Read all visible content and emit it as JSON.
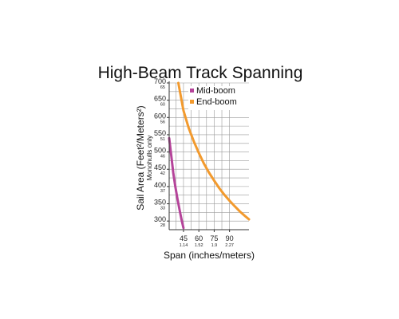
{
  "chart_data": {
    "type": "line",
    "title": "High-Beam Track Spanning",
    "ylabel": "Sail Area (Feet²/Meters²)",
    "ylabel_note": "Monohulls only",
    "xlabel": "Span (inches/meters)",
    "ylim": [
      275,
      700
    ],
    "xlim": [
      31,
      109
    ],
    "x_ticks": [
      {
        "value": 45,
        "label": "45",
        "sublabel": "1.14"
      },
      {
        "value": 60,
        "label": "60",
        "sublabel": "1.52"
      },
      {
        "value": 75,
        "label": "75",
        "sublabel": "1.9"
      },
      {
        "value": 90,
        "label": "90",
        "sublabel": "2.27"
      }
    ],
    "y_ticks": [
      {
        "value": 700,
        "label": "700",
        "sublabel": "65"
      },
      {
        "value": 650,
        "label": "650",
        "sublabel": "60"
      },
      {
        "value": 600,
        "label": "600",
        "sublabel": "56"
      },
      {
        "value": 550,
        "label": "550",
        "sublabel": "51"
      },
      {
        "value": 500,
        "label": "500",
        "sublabel": "46"
      },
      {
        "value": 450,
        "label": "450",
        "sublabel": "42"
      },
      {
        "value": 400,
        "label": "400",
        "sublabel": "37"
      },
      {
        "value": 350,
        "label": "350",
        "sublabel": "33"
      },
      {
        "value": 300,
        "label": "300",
        "sublabel": "28"
      }
    ],
    "grid": true,
    "legend_position": "top-right",
    "series": [
      {
        "name": "Mid-boom",
        "color": "#b5449a",
        "x": [
          31,
          33,
          35,
          37,
          39,
          41,
          43,
          45
        ],
        "y": [
          540,
          490,
          440,
          400,
          365,
          335,
          305,
          280
        ]
      },
      {
        "name": "End-boom",
        "color": "#f29a2e",
        "x": [
          40,
          45,
          50,
          55,
          60,
          65,
          70,
          75,
          80,
          85,
          90,
          95,
          100,
          105,
          109
        ],
        "y": [
          700,
          620,
          570,
          531,
          497,
          466,
          440,
          417,
          395,
          376,
          359,
          343,
          328,
          315,
          305
        ]
      }
    ]
  }
}
